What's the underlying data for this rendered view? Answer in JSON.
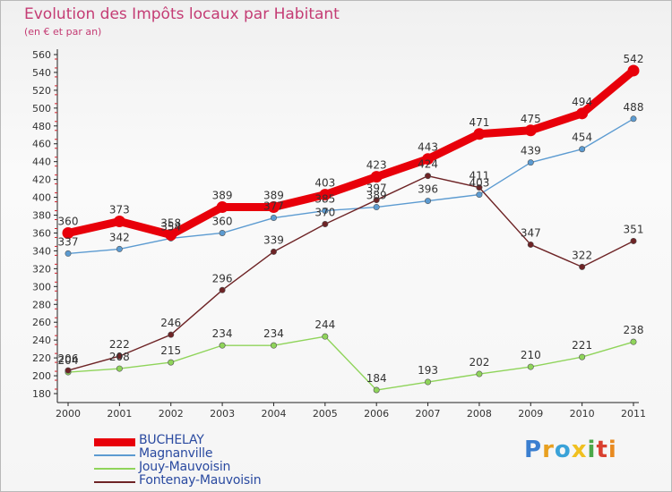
{
  "title": "Evolution des Impôts locaux par Habitant",
  "subtitle": "(en € et par an)",
  "brand": "Proxiti",
  "chart_data": {
    "type": "line",
    "title": "Evolution des Impôts locaux par Habitant",
    "subtitle": "(en € et par an)",
    "categories": [
      "2000",
      "2001",
      "2002",
      "2003",
      "2004",
      "2005",
      "2006",
      "2007",
      "2008",
      "2009",
      "2010",
      "2011"
    ],
    "ylim": [
      180,
      560
    ],
    "yticks": [
      180,
      200,
      220,
      240,
      260,
      280,
      300,
      320,
      340,
      360,
      380,
      400,
      420,
      440,
      460,
      480,
      500,
      520,
      540,
      560
    ],
    "grid": false,
    "legend_position": "bottom-left",
    "series": [
      {
        "name": "BUCHELAY",
        "color": "#e8000a",
        "values": [
          360,
          373,
          358,
          389,
          389,
          403,
          423,
          443,
          471,
          475,
          494,
          542
        ]
      },
      {
        "name": "Magnanville",
        "color": "#5c9bd1",
        "values": [
          337,
          342,
          354,
          360,
          377,
          385,
          389,
          396,
          403,
          439,
          454,
          488
        ]
      },
      {
        "name": "Jouy-Mauvoisin",
        "color": "#8fd45a",
        "values": [
          204,
          208,
          215,
          234,
          234,
          244,
          184,
          193,
          202,
          210,
          221,
          238
        ]
      },
      {
        "name": "Fontenay-Mauvoisin",
        "color": "#6e2426",
        "values": [
          206,
          222,
          246,
          296,
          339,
          370,
          397,
          424,
          411,
          347,
          322,
          351
        ]
      }
    ],
    "data_labels": [
      {
        "series": 0,
        "labels": [
          "360",
          "373",
          "358",
          "389",
          "389",
          "403",
          "423",
          "443",
          "471",
          "475",
          "494",
          "542"
        ]
      },
      {
        "series": 1,
        "labels": [
          "337",
          "342",
          "354",
          "360",
          "377",
          "385",
          "389",
          "396",
          "403",
          "439",
          "454",
          "488"
        ]
      },
      {
        "series": 2,
        "labels": [
          "204",
          "208",
          "215",
          "234",
          "234",
          "244",
          "184",
          "193",
          "202",
          "210",
          "221",
          "238"
        ]
      },
      {
        "series": 3,
        "labels": [
          "206",
          "222",
          "246",
          "296",
          "339",
          "370",
          "397",
          "424",
          "411",
          "347",
          "322",
          "351"
        ]
      }
    ]
  }
}
